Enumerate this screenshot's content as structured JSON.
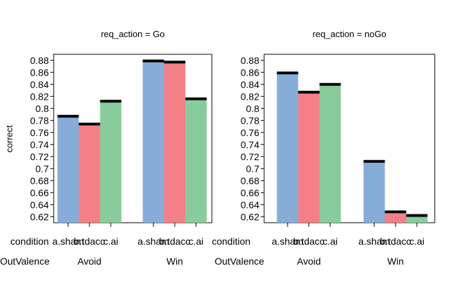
{
  "chart_data": {
    "type": "bar",
    "ylabel": "correct",
    "ylim": [
      0.61,
      0.89
    ],
    "yticks": [
      0.62,
      0.64,
      0.66,
      0.68,
      0.7,
      0.72,
      0.74,
      0.76,
      0.78,
      0.8,
      0.82,
      0.84,
      0.86,
      0.88
    ],
    "ytick_labels": [
      "0.62",
      "0.64",
      "0.66",
      "0.68",
      "0.7",
      "0.72",
      "0.74",
      "0.76",
      "0.78",
      "0.8",
      "0.82",
      "0.84",
      "0.86",
      "0.88"
    ],
    "row_label_condition": "condition",
    "row_label_outvalence": "OutValence",
    "groups": [
      "Avoid",
      "Win"
    ],
    "conditions": [
      "a.sham",
      "b.tdacc",
      "c.ai"
    ],
    "colors": {
      "a.sham": "#88acd8",
      "b.tdacc": "#f48088",
      "c.ai": "#88cc9c",
      "error_cap": "#000000"
    },
    "panels": [
      {
        "title": "req_action = Go",
        "values": {
          "Avoid": {
            "a.sham": 0.787,
            "b.tdacc": 0.774,
            "c.ai": 0.812
          },
          "Win": {
            "a.sham": 0.879,
            "b.tdacc": 0.877,
            "c.ai": 0.816
          }
        }
      },
      {
        "title": "req_action = noGo",
        "values": {
          "Avoid": {
            "a.sham": 0.859,
            "b.tdacc": 0.827,
            "c.ai": 0.84
          },
          "Win": {
            "a.sham": 0.712,
            "b.tdacc": 0.628,
            "c.ai": 0.622
          }
        }
      }
    ]
  }
}
